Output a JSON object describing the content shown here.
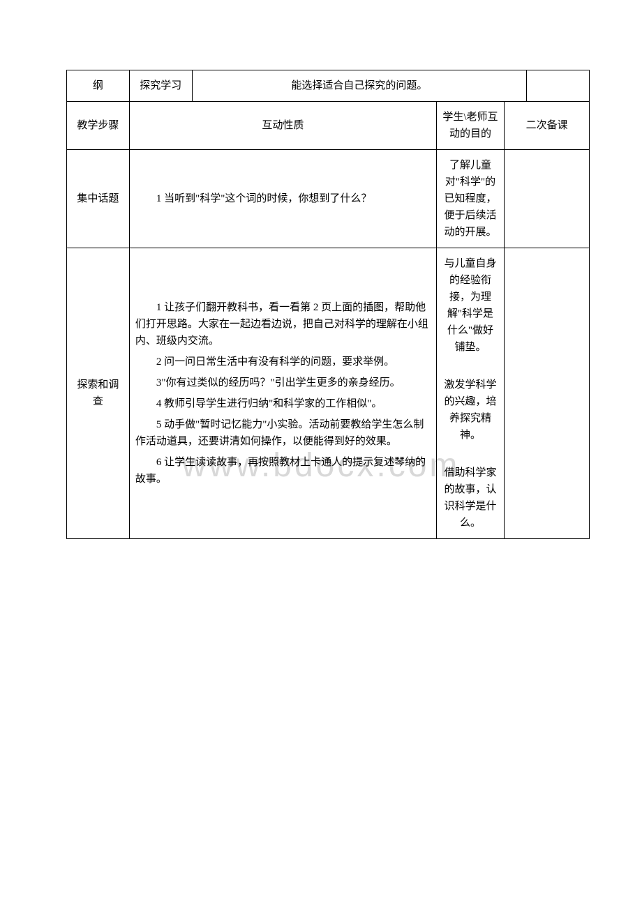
{
  "watermark": "www.bdocx.com",
  "row1": {
    "c1": "纲",
    "c2": "探究学习",
    "c3": "能选择适合自己探究的问题。"
  },
  "row2": {
    "c1": "教学步骤",
    "c2": "互动性质",
    "c3": "学生\\老师互动的目的",
    "c4": "二次备课"
  },
  "row3": {
    "c1": "集中话题",
    "c2": "1 当听到\"科学\"这个词的时候，你想到了什么？",
    "c3": "了解儿童对\"科学\"的已知程度，便于后续活动的开展。"
  },
  "row4": {
    "c1": "探索和调查",
    "p1": "1 让孩子们翻开教科书，看一看第 2 页上面的插图，帮助他们打开思路。大家在一起边看边说，把自己对科学的理解在小组内、班级内交流。",
    "p2": "2 问一问日常生活中有没有科学的问题，要求举例。",
    "p3": "3\"你有过类似的经历吗？\"引出学生更多的亲身经历。",
    "p4": "4 教师引导学生进行归纳\"和科学家的工作相似\"。",
    "p5": "5 动手做\"暂时记忆能力\"小实验。活动前要教给学生怎么制作活动道具，还要讲清如何操作，以便能得到好的效果。",
    "p6": "6 让学生读读故事，再按照教材上卡通人的提示复述琴纳的故事。",
    "q1": "与儿童自身的经验衔接，为理解\"科学是什么\"做好铺垫。",
    "q2": "激发学科学的兴趣，培养探究精神。",
    "q3": "借助科学家的故事，认识科学是什么。"
  }
}
